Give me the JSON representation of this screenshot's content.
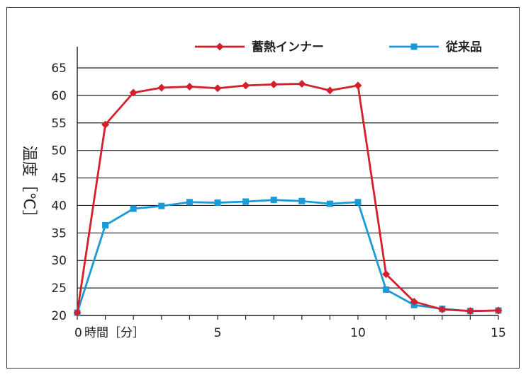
{
  "chart_data": {
    "type": "line",
    "xlabel": "時間［分］",
    "ylabel": "温度［℃］",
    "xlim": [
      0,
      15
    ],
    "ylim": [
      20,
      65
    ],
    "xticks": [
      0,
      5,
      10,
      15
    ],
    "yticks": [
      20,
      25,
      30,
      35,
      40,
      45,
      50,
      55,
      60,
      65
    ],
    "grid": "horizontal",
    "legend_position": "top-right",
    "series": [
      {
        "name": "蓄熱インナー",
        "color": "#d3202a",
        "marker": "diamond",
        "x": [
          0,
          1,
          2,
          3,
          4,
          5,
          6,
          7,
          8,
          9,
          10,
          11,
          12,
          13,
          14,
          15
        ],
        "values": [
          20.5,
          54.7,
          60.5,
          61.4,
          61.6,
          61.3,
          61.8,
          62.0,
          62.1,
          60.9,
          61.8,
          27.5,
          22.5,
          21.1,
          20.8,
          20.9
        ]
      },
      {
        "name": "従来品",
        "color": "#1a9ad6",
        "marker": "square",
        "x": [
          0,
          1,
          2,
          3,
          4,
          5,
          6,
          7,
          8,
          9,
          10,
          11,
          12,
          13,
          14,
          15
        ],
        "values": [
          20.5,
          36.4,
          39.4,
          39.9,
          40.6,
          40.5,
          40.7,
          41.0,
          40.8,
          40.3,
          40.6,
          24.7,
          21.9,
          21.2,
          20.8,
          20.9
        ]
      }
    ]
  }
}
